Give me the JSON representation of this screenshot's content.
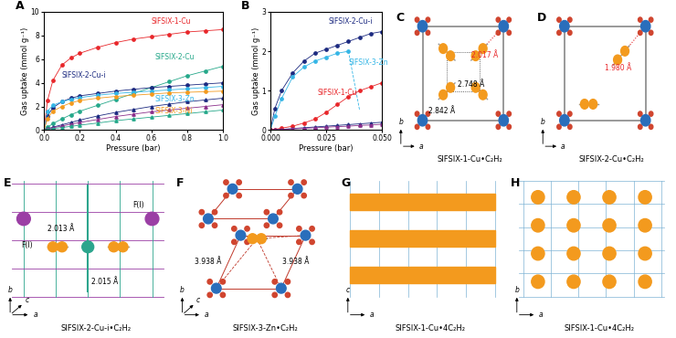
{
  "chart_data": [
    {
      "type": "line",
      "title": "A",
      "x_label": "Pressure (bar)",
      "y_label": "Gas uptake (mmol g⁻¹)",
      "x": [
        0.0,
        0.02,
        0.05,
        0.1,
        0.15,
        0.2,
        0.3,
        0.4,
        0.5,
        0.6,
        0.7,
        0.8,
        0.9,
        1.0
      ],
      "xlim": [
        0,
        1.0
      ],
      "ylim": [
        0,
        10
      ],
      "xticks": [
        0.0,
        0.2,
        0.4,
        0.6,
        0.8,
        1.0
      ],
      "yticks": [
        0,
        2,
        4,
        6,
        8,
        10
      ],
      "series": [
        {
          "name": "SIFSIX-1-Cu",
          "color": "#e8262a",
          "marker": "circle",
          "line_style": "solid",
          "values": [
            0,
            2.5,
            4.2,
            5.5,
            6.1,
            6.5,
            7.0,
            7.4,
            7.7,
            7.9,
            8.1,
            8.3,
            8.4,
            8.5
          ]
        },
        {
          "name": "SIFSIX-2-Cu",
          "color": "#25a88a",
          "marker": "circle",
          "line_style": "solid",
          "values": [
            0,
            0.25,
            0.55,
            0.95,
            1.3,
            1.6,
            2.1,
            2.6,
            3.1,
            3.6,
            4.1,
            4.6,
            5.0,
            5.4
          ]
        },
        {
          "name": "SIFSIX-2-Cu-i",
          "color": "#1c2a80",
          "marker": "circle",
          "line_style": "solid",
          "values": [
            0,
            1.2,
            1.9,
            2.4,
            2.7,
            2.9,
            3.1,
            3.3,
            3.45,
            3.6,
            3.7,
            3.8,
            3.9,
            4.0
          ]
        },
        {
          "name": "SIFSIX-3-Zn",
          "color": "#35b6e6",
          "marker": "circle",
          "line_style": "solid",
          "values": [
            0,
            1.6,
            2.1,
            2.4,
            2.6,
            2.75,
            2.95,
            3.1,
            3.2,
            3.3,
            3.4,
            3.5,
            3.6,
            3.7
          ]
        },
        {
          "name": "SIFSIX-3-Ni",
          "color": "#f39a1e",
          "marker": "circle",
          "line_style": "solid",
          "values": [
            0,
            1.0,
            1.6,
            2.0,
            2.3,
            2.5,
            2.7,
            2.85,
            2.95,
            3.05,
            3.15,
            3.2,
            3.25,
            3.3
          ]
        },
        {
          "color": "#1c2a80",
          "marker": "triangle",
          "line_style": "solid",
          "values": [
            0,
            0.1,
            0.25,
            0.45,
            0.65,
            0.85,
            1.2,
            1.5,
            1.75,
            2.0,
            2.2,
            2.4,
            2.55,
            2.7
          ]
        },
        {
          "color": "#8b2f8b",
          "marker": "triangle",
          "line_style": "solid",
          "values": [
            0,
            0.08,
            0.2,
            0.35,
            0.5,
            0.65,
            0.9,
            1.15,
            1.35,
            1.55,
            1.7,
            1.85,
            2.0,
            2.15
          ]
        },
        {
          "color": "#25a88a",
          "marker": "triangle",
          "line_style": "solid",
          "values": [
            0,
            0.05,
            0.12,
            0.22,
            0.32,
            0.42,
            0.6,
            0.8,
            0.95,
            1.1,
            1.25,
            1.4,
            1.55,
            1.7
          ]
        }
      ]
    },
    {
      "type": "line",
      "title": "B",
      "x_label": "Pressure (bar)",
      "y_label": "Gas uptake (mmol g⁻¹)",
      "x": [
        0.0,
        0.002,
        0.005,
        0.01,
        0.015,
        0.02,
        0.025,
        0.03,
        0.035,
        0.04,
        0.045,
        0.05
      ],
      "xlim": [
        0,
        0.05
      ],
      "ylim": [
        0,
        3
      ],
      "xticks": [
        {
          "value": 0,
          "label": "0.000"
        },
        {
          "value": 0.025,
          "label": "0.025"
        },
        {
          "value": 0.05,
          "label": "0.050"
        }
      ],
      "yticks": [
        0,
        1,
        2,
        3
      ],
      "series": [
        {
          "name": "SIFSIX-2-Cu-i",
          "color": "#1c2a80",
          "marker": "circle",
          "line_style": "solid",
          "values": [
            0,
            0.55,
            1.0,
            1.45,
            1.75,
            1.95,
            2.05,
            2.15,
            2.25,
            2.35,
            2.45,
            2.5
          ]
        },
        {
          "name": "SIFSIX-3-Zn",
          "color": "#35b6e6",
          "marker": "circle",
          "line_style": "solid",
          "values": [
            0,
            0.35,
            0.8,
            1.35,
            1.6,
            1.75,
            1.85,
            1.95,
            2.0,
            null,
            null,
            null
          ]
        },
        {
          "color": "#35b6e6",
          "marker": "none",
          "line_style": "dashed",
          "values": [
            null,
            null,
            null,
            null,
            null,
            null,
            null,
            null,
            2.0,
            0.5,
            null,
            null
          ]
        },
        {
          "name": "SIFSIX-1-Cu",
          "color": "#e8262a",
          "marker": "circle",
          "line_style": "solid",
          "values": [
            0,
            0.02,
            0.05,
            0.1,
            0.18,
            0.28,
            0.45,
            0.65,
            0.85,
            1.0,
            1.1,
            1.2
          ]
        },
        {
          "color": "#1c2a80",
          "marker": "triangle",
          "line_style": "solid",
          "values": [
            0,
            0.01,
            0.02,
            0.04,
            0.06,
            0.08,
            0.1,
            0.12,
            0.14,
            0.16,
            0.18,
            0.2
          ]
        },
        {
          "color": "#8b2f8b",
          "marker": "triangle",
          "line_style": "solid",
          "values": [
            0,
            0.01,
            0.015,
            0.03,
            0.045,
            0.06,
            0.075,
            0.09,
            0.1,
            0.12,
            0.13,
            0.15
          ]
        }
      ]
    }
  ],
  "diagrams": [
    {
      "panel": "C",
      "caption": "SIFSIX-1-Cu•C₂H₂",
      "axes": [
        "a",
        "b"
      ],
      "labels": [
        {
          "text": "2.017 Å",
          "color": "#e8262a"
        },
        {
          "text": "2.748 Å",
          "color": "#000000"
        },
        {
          "text": "2.842 Å",
          "color": "#000000"
        }
      ]
    },
    {
      "panel": "D",
      "caption": "SIFSIX-2-Cu•C₂H₂",
      "axes": [
        "a",
        "b"
      ],
      "labels": [
        {
          "text": "1.980 Å",
          "color": "#e8262a"
        }
      ]
    },
    {
      "panel": "E",
      "caption": "SIFSIX-2-Cu-i•C₂H₂",
      "axes": [
        "a",
        "b",
        "c"
      ],
      "labels": [
        {
          "text": "2.013 Å",
          "color": "#000000"
        },
        {
          "text": "2.015 Å",
          "color": "#000000"
        },
        {
          "text": "F(I)",
          "color": "#000000"
        },
        {
          "text": "F(I)",
          "color": "#000000"
        }
      ]
    },
    {
      "panel": "F",
      "caption": "SIFSIX-3-Zn•C₂H₂",
      "axes": [
        "a",
        "b",
        "c"
      ],
      "labels": [
        {
          "text": "3.938 Å",
          "color": "#000000"
        },
        {
          "text": "3.938 Å",
          "color": "#000000"
        }
      ]
    },
    {
      "panel": "G",
      "caption": "SIFSIX-1-Cu•4C₂H₂",
      "axes": [
        "a",
        "c"
      ],
      "labels": []
    },
    {
      "panel": "H",
      "caption": "SIFSIX-1-Cu•4C₂H₂",
      "axes": [
        "a",
        "b"
      ],
      "labels": []
    }
  ]
}
